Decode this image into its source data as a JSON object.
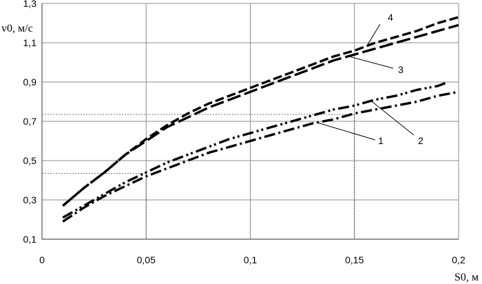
{
  "chart_data": {
    "type": "line",
    "xlabel": "S0, м",
    "ylabel": "v0, м/с",
    "xlim": [
      0,
      0.2
    ],
    "ylim": [
      0.1,
      1.3
    ],
    "x_ticks": [
      0,
      0.05,
      0.1,
      0.15,
      0.2
    ],
    "x_tick_labels": [
      "0",
      "0,05",
      "0,1",
      "0,15",
      "0,2"
    ],
    "y_ticks": [
      0.1,
      0.3,
      0.5,
      0.7,
      0.9,
      1.1,
      1.3
    ],
    "y_tick_labels": [
      "0,1",
      "0,3",
      "0,5",
      "0,7",
      "0,9",
      "1,1",
      "1,3"
    ],
    "grid": true,
    "series": [
      {
        "name": "1",
        "style": "dash-dot",
        "x": [
          0.01,
          0.02,
          0.03,
          0.04,
          0.05,
          0.06,
          0.07,
          0.08,
          0.09,
          0.1,
          0.11,
          0.12,
          0.13,
          0.14,
          0.15,
          0.16,
          0.17,
          0.18,
          0.19,
          0.2
        ],
        "y": [
          0.19,
          0.26,
          0.32,
          0.37,
          0.42,
          0.46,
          0.5,
          0.54,
          0.57,
          0.6,
          0.63,
          0.66,
          0.69,
          0.71,
          0.74,
          0.76,
          0.78,
          0.8,
          0.83,
          0.85
        ]
      },
      {
        "name": "2",
        "style": "dash-dot-dot",
        "x": [
          0.01,
          0.02,
          0.03,
          0.04,
          0.05,
          0.06,
          0.07,
          0.08,
          0.09,
          0.1,
          0.11,
          0.12,
          0.13,
          0.14,
          0.15,
          0.16,
          0.17,
          0.18,
          0.19,
          0.195
        ],
        "y": [
          0.21,
          0.27,
          0.33,
          0.39,
          0.44,
          0.49,
          0.53,
          0.57,
          0.61,
          0.64,
          0.67,
          0.7,
          0.73,
          0.76,
          0.78,
          0.81,
          0.83,
          0.86,
          0.88,
          0.9
        ]
      },
      {
        "name": "3",
        "style": "long-dash",
        "x": [
          0.01,
          0.02,
          0.03,
          0.04,
          0.05,
          0.06,
          0.07,
          0.08,
          0.09,
          0.1,
          0.11,
          0.12,
          0.13,
          0.14,
          0.15,
          0.16,
          0.17,
          0.18,
          0.19,
          0.2
        ],
        "y": [
          0.27,
          0.36,
          0.44,
          0.53,
          0.6,
          0.67,
          0.72,
          0.77,
          0.81,
          0.85,
          0.89,
          0.93,
          0.97,
          1.01,
          1.04,
          1.07,
          1.1,
          1.13,
          1.16,
          1.19
        ]
      },
      {
        "name": "4",
        "style": "dash",
        "x": [
          0.01,
          0.02,
          0.03,
          0.04,
          0.05,
          0.06,
          0.07,
          0.08,
          0.09,
          0.1,
          0.11,
          0.12,
          0.13,
          0.14,
          0.15,
          0.16,
          0.17,
          0.18,
          0.19,
          0.2
        ],
        "y": [
          0.27,
          0.36,
          0.44,
          0.53,
          0.61,
          0.68,
          0.74,
          0.79,
          0.83,
          0.87,
          0.91,
          0.95,
          0.99,
          1.03,
          1.06,
          1.1,
          1.13,
          1.16,
          1.2,
          1.23
        ]
      }
    ],
    "reference_lines": [
      {
        "x": 0.05,
        "y": 0.435
      },
      {
        "x": 0.15,
        "y": 0.735
      }
    ]
  }
}
